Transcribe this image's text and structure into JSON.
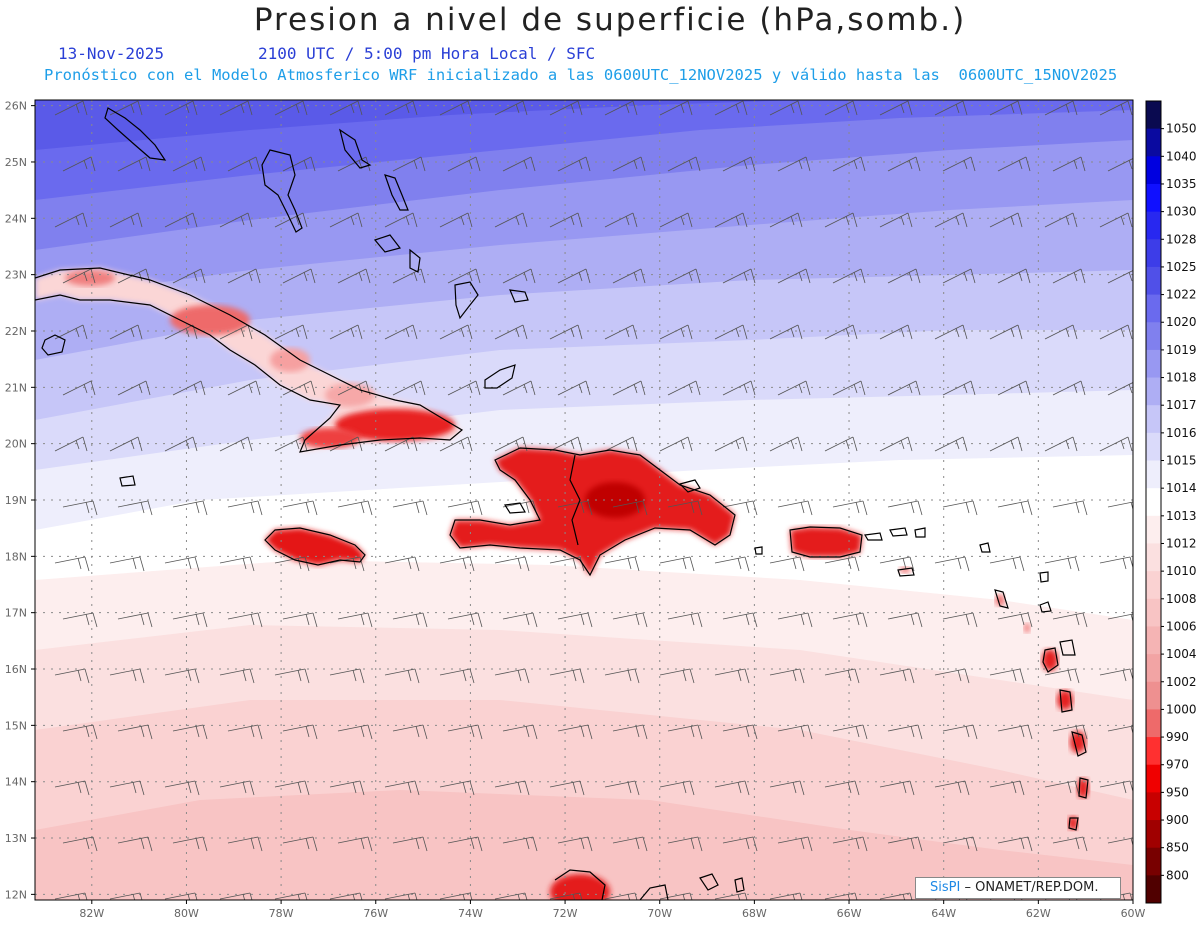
{
  "header": {
    "title": "Presion a nivel de superficie (hPa,somb.)",
    "date": "13-Nov-2025",
    "time": "2100 UTC / 5:00 pm Hora Local / SFC",
    "forecast": "Pronóstico con el Modelo Atmosferico WRF inicializado a las 0600UTC_12NOV2025 y válido hasta las  0600UTC_15NOV2025"
  },
  "map": {
    "lon_range": [
      -83.2,
      -60
    ],
    "lat_range": [
      11.9,
      26.1
    ],
    "lat_labels": [
      "26N",
      "25N",
      "24N",
      "23N",
      "22N",
      "21N",
      "20N",
      "19N",
      "18N",
      "17N",
      "16N",
      "15N",
      "14N",
      "13N",
      "12N"
    ],
    "lon_labels": [
      "82W",
      "80W",
      "78W",
      "76W",
      "74W",
      "72W",
      "70W",
      "68W",
      "66W",
      "64W",
      "62W",
      "60W"
    ],
    "gridlines": true,
    "islands": [
      "Cuba",
      "Isla de la Juventud",
      "Jamaica",
      "La Española",
      "Puerto Rico",
      "Bahamas",
      "Antillas Menores"
    ]
  },
  "colorbar": {
    "levels": [
      "1050",
      "1040",
      "1035",
      "1030",
      "1028",
      "1025",
      "1022",
      "1020",
      "1019",
      "1018",
      "1017",
      "1016",
      "1015",
      "1014",
      "1013",
      "1012",
      "1010",
      "1008",
      "1006",
      "1004",
      "1002",
      "1000",
      "990",
      "970",
      "950",
      "900",
      "850",
      "800"
    ],
    "colors": [
      "#0a0a50",
      "#0a0aa0",
      "#0000e0",
      "#1010ff",
      "#2828f0",
      "#3d3de8",
      "#5050e8",
      "#6a6aee",
      "#8080ee",
      "#9898f2",
      "#aeaef4",
      "#c6c6f8",
      "#dadafa",
      "#eeeefc",
      "#ffffff",
      "#fdeeee",
      "#fbe0e0",
      "#fad2d2",
      "#f8c4c4",
      "#f5b4b4",
      "#f2a4a4",
      "#ee9090",
      "#ee6a6a",
      "#ff3030",
      "#f00000",
      "#c80000",
      "#a00000",
      "#780000",
      "#500000"
    ]
  },
  "credit": {
    "brand": "SisPI",
    "org": "– ONAMET/REP.DOM."
  }
}
